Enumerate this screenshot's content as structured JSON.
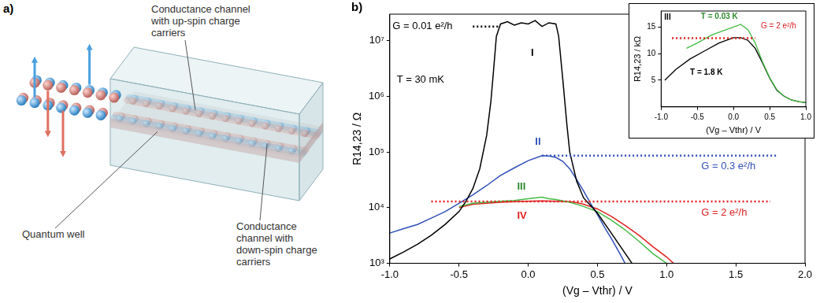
{
  "diagram": {
    "panel": "a)",
    "up_channel_label": "Conductance channel with up-spin charge carriers",
    "quantum_well_label": "Quantum well",
    "down_channel_label": "Conductance channel with down-spin charge carriers"
  },
  "chart_data": [
    {
      "panel": "b)",
      "type": "line",
      "log": "y",
      "grid": false,
      "x_label": "(Vg – Vthr) / V",
      "y_label": "R14,23 / Ω",
      "xlim": [
        -1,
        2
      ],
      "xticks": [
        {
          "value": -1,
          "label": "-1.0"
        },
        -0.5,
        {
          "value": 0,
          "label": "0.0"
        },
        0.5,
        {
          "value": 1,
          "label": "1.0"
        },
        1.5,
        {
          "value": 2,
          "label": "2.0"
        }
      ],
      "ylim": [
        1000,
        30000000
      ],
      "yticks": [
        {
          "value": 1000,
          "label": "10³"
        },
        {
          "value": 10000,
          "label": "10⁴"
        },
        {
          "value": 100000,
          "label": "10⁵"
        },
        {
          "value": 1000000,
          "label": "10⁶"
        },
        {
          "value": 10000000,
          "label": "10⁷"
        }
      ],
      "annotations": [
        {
          "text": "T = 30 mK",
          "x": -0.95,
          "y": 2000000
        }
      ],
      "reference_lines": [
        {
          "label": "G = 0.01 e²/h",
          "y": 18000000,
          "x": [
            -0.4,
            -0.2
          ],
          "color": "#000000",
          "line_style": "dotted",
          "label_x": -0.98,
          "label_y": 18000000
        },
        {
          "label": "G = 0.3 e²/h",
          "y": 86000,
          "x": [
            0.1,
            1.8
          ],
          "color": "#3050b8",
          "line_style": "dotted",
          "label_x": 1.25,
          "label_y": 55000
        },
        {
          "label": "G = 2 e²/h",
          "y": 12900,
          "x": [
            -0.7,
            1.75
          ],
          "color": "#e02020",
          "line_style": "dotted",
          "label_x": 1.25,
          "label_y": 8000
        }
      ],
      "series": [
        {
          "name": "I",
          "color": "#000000",
          "label_x": 0.02,
          "label_y": 6000000,
          "x": [
            -1.0,
            -0.9,
            -0.8,
            -0.7,
            -0.6,
            -0.5,
            -0.45,
            -0.4,
            -0.35,
            -0.3,
            -0.27,
            -0.25,
            -0.23,
            -0.2,
            -0.15,
            -0.1,
            -0.05,
            0,
            0.05,
            0.1,
            0.15,
            0.2,
            0.22,
            0.25,
            0.28,
            0.3,
            0.35,
            0.4,
            0.5,
            0.6,
            0.75
          ],
          "values": [
            1200,
            1600,
            2200,
            3200,
            5000,
            8500,
            13000,
            22000,
            50000,
            200000,
            800000,
            3000000,
            12000000,
            20000000,
            22000000,
            19000000,
            21000000,
            20000000,
            23000000,
            18000000,
            21000000,
            20000000,
            12000000,
            2000000,
            300000,
            100000,
            30000,
            15000,
            8000,
            3500,
            1000
          ]
        },
        {
          "name": "II",
          "color": "#3050b8",
          "label_x": 0.05,
          "label_y": 150000,
          "x": [
            -1.0,
            -0.9,
            -0.8,
            -0.7,
            -0.6,
            -0.5,
            -0.4,
            -0.3,
            -0.2,
            -0.1,
            0,
            0.1,
            0.15,
            0.2,
            0.25,
            0.3,
            0.35,
            0.4,
            0.45,
            0.5,
            0.55,
            0.6,
            0.65,
            0.7
          ],
          "values": [
            3500,
            4200,
            5000,
            6500,
            8500,
            12000,
            17000,
            25000,
            38000,
            52000,
            70000,
            86000,
            85000,
            80000,
            68000,
            50000,
            32000,
            20000,
            12000,
            7500,
            4500,
            2800,
            1700,
            1000
          ]
        },
        {
          "name": "III",
          "color": "#44bb44",
          "label_x": -0.08,
          "label_y": 24000,
          "x": [
            -0.5,
            -0.4,
            -0.3,
            -0.2,
            -0.1,
            0,
            0.05,
            0.1,
            0.15,
            0.2,
            0.3,
            0.35,
            0.4,
            0.5,
            0.6,
            0.7,
            0.8,
            0.9,
            1.0
          ],
          "values": [
            10500,
            12000,
            12500,
            13000,
            13500,
            14500,
            15000,
            15500,
            14500,
            14000,
            12500,
            11500,
            10500,
            8500,
            6000,
            4000,
            2500,
            1500,
            1000
          ]
        },
        {
          "name": "IV",
          "color": "#e02020",
          "label_x": -0.08,
          "label_y": 7000,
          "x": [
            -0.5,
            -0.4,
            -0.3,
            -0.2,
            -0.1,
            0,
            0.1,
            0.2,
            0.3,
            0.35,
            0.4,
            0.5,
            0.6,
            0.7,
            0.8,
            0.9,
            1.0,
            1.05
          ],
          "values": [
            10000,
            11500,
            12000,
            12500,
            12800,
            13000,
            13200,
            13000,
            12800,
            12300,
            11500,
            9500,
            7000,
            4800,
            3200,
            2000,
            1300,
            1000
          ]
        }
      ]
    },
    {
      "title": "III",
      "type": "line",
      "grid": false,
      "x_label": "(Vg – Vthr) / V",
      "y_label": "R14,23 / kΩ",
      "xlim": [
        -1,
        1
      ],
      "xticks": [
        {
          "value": -1,
          "label": "-1.0"
        },
        -0.5,
        {
          "value": 0,
          "label": "0.0"
        },
        0.5,
        {
          "value": 1,
          "label": "1.0"
        }
      ],
      "ylim": [
        0,
        18
      ],
      "yticks": [
        5,
        10,
        15
      ],
      "reference_lines": [
        {
          "label": "G = 2 e²/h",
          "y": 12.9,
          "x": [
            -0.85,
            0.3
          ],
          "color": "#e02020",
          "line_style": "dotted",
          "label_x": 0.38,
          "label_y": 15.2
        }
      ],
      "series": [
        {
          "name": "T = 0.03 K",
          "color": "#44bb44",
          "label_x": -0.45,
          "label_y": 17,
          "x": [
            -0.65,
            -0.5,
            -0.3,
            -0.1,
            0,
            0.1,
            0.2,
            0.3,
            0.4,
            0.5,
            0.6,
            0.7,
            0.8,
            0.9,
            1.0
          ],
          "values": [
            11,
            12,
            13.5,
            14.5,
            15,
            15.5,
            14.5,
            12,
            8.5,
            5.5,
            3.2,
            2,
            1.3,
            1,
            0.8
          ]
        },
        {
          "name": "T = 1.8 K",
          "color": "#000000",
          "label_x": -0.6,
          "label_y": 6.5,
          "x": [
            -0.95,
            -0.8,
            -0.6,
            -0.4,
            -0.2,
            0,
            0.1,
            0.2,
            0.3,
            0.4,
            0.5,
            0.6,
            0.7,
            0.8,
            0.9,
            1.0
          ],
          "values": [
            5,
            7,
            9,
            10.5,
            12,
            13,
            13,
            12.5,
            11,
            8.3,
            5.4,
            3.1,
            2,
            1.3,
            1,
            0.8
          ]
        }
      ]
    }
  ]
}
